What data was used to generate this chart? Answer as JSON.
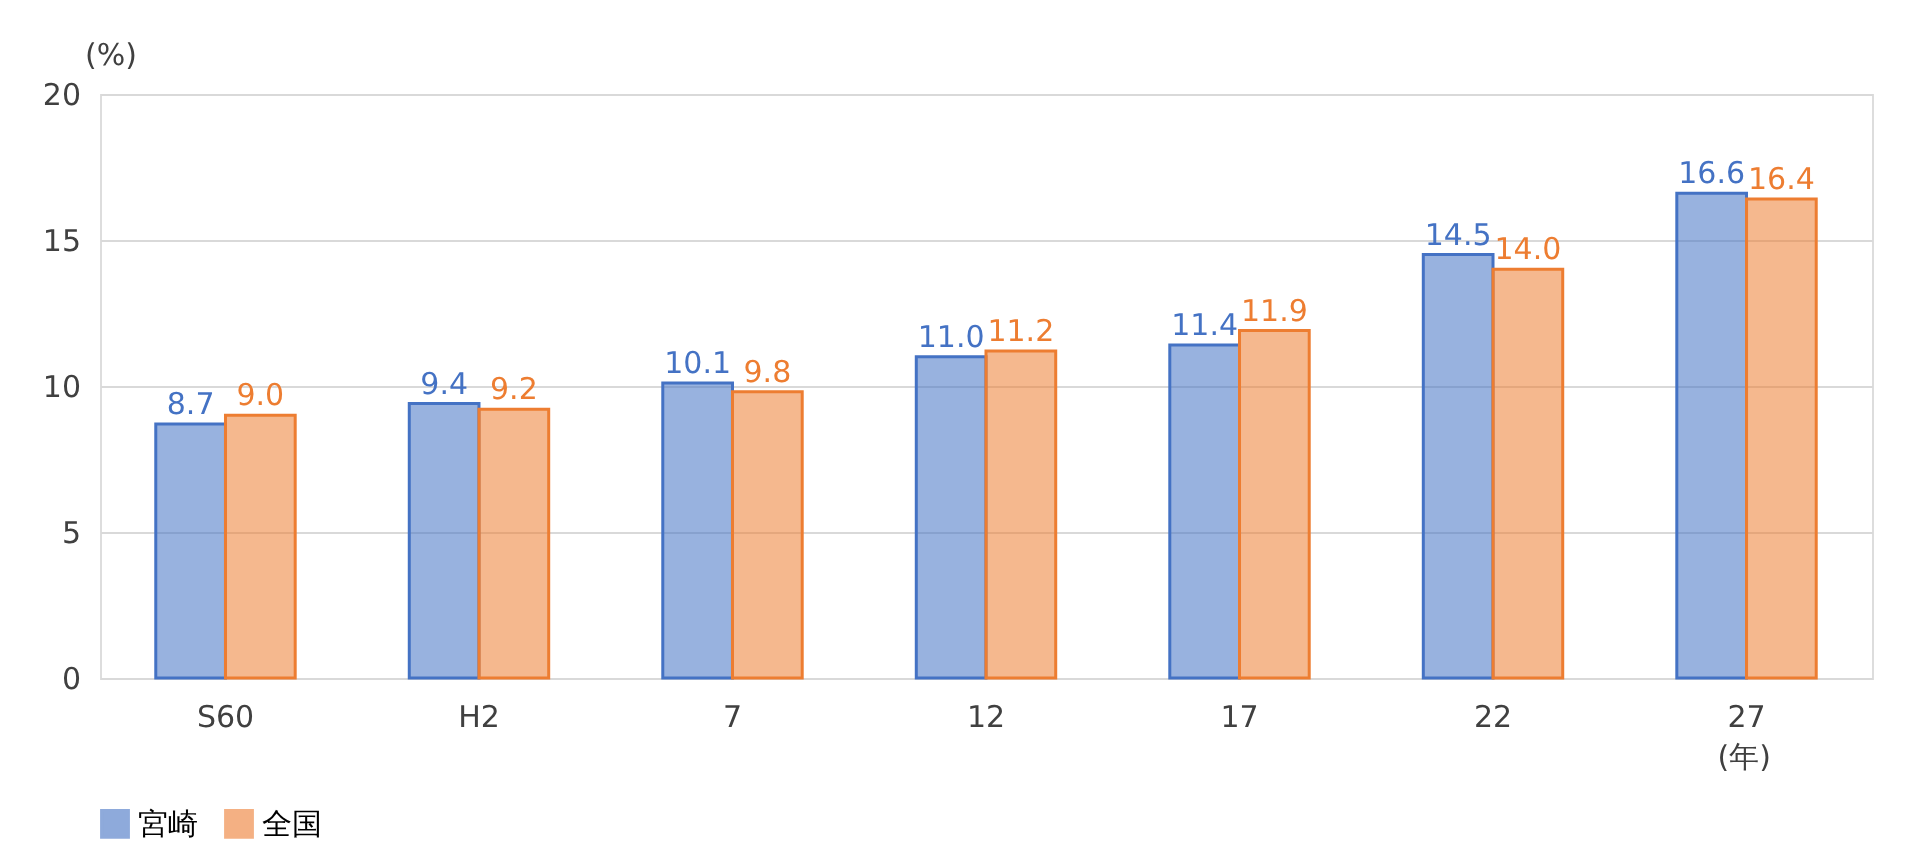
{
  "chart_data": {
    "type": "bar",
    "categories": [
      "S60",
      "H2",
      "7",
      "12",
      "17",
      "22",
      "27"
    ],
    "series": [
      {
        "name": "宮崎",
        "color": "#4472c4",
        "values": [
          8.7,
          9.4,
          10.1,
          11.0,
          11.4,
          14.5,
          16.6
        ],
        "value_labels": [
          "8.7",
          "9.4",
          "10.1",
          "11.0",
          "11.4",
          "14.5",
          "16.6"
        ]
      },
      {
        "name": "全国",
        "color": "#ed7d31",
        "values": [
          9.0,
          9.2,
          9.8,
          11.2,
          11.9,
          14.0,
          16.4
        ],
        "value_labels": [
          "9.0",
          "9.2",
          "9.8",
          "11.2",
          "11.9",
          "14.0",
          "16.4"
        ]
      }
    ],
    "ylabel": "(%)",
    "xlabel": "(年)",
    "ylim": [
      0,
      20
    ],
    "yticks": [
      0,
      5,
      10,
      15,
      20
    ],
    "grid": "y",
    "legend": "bottom"
  }
}
